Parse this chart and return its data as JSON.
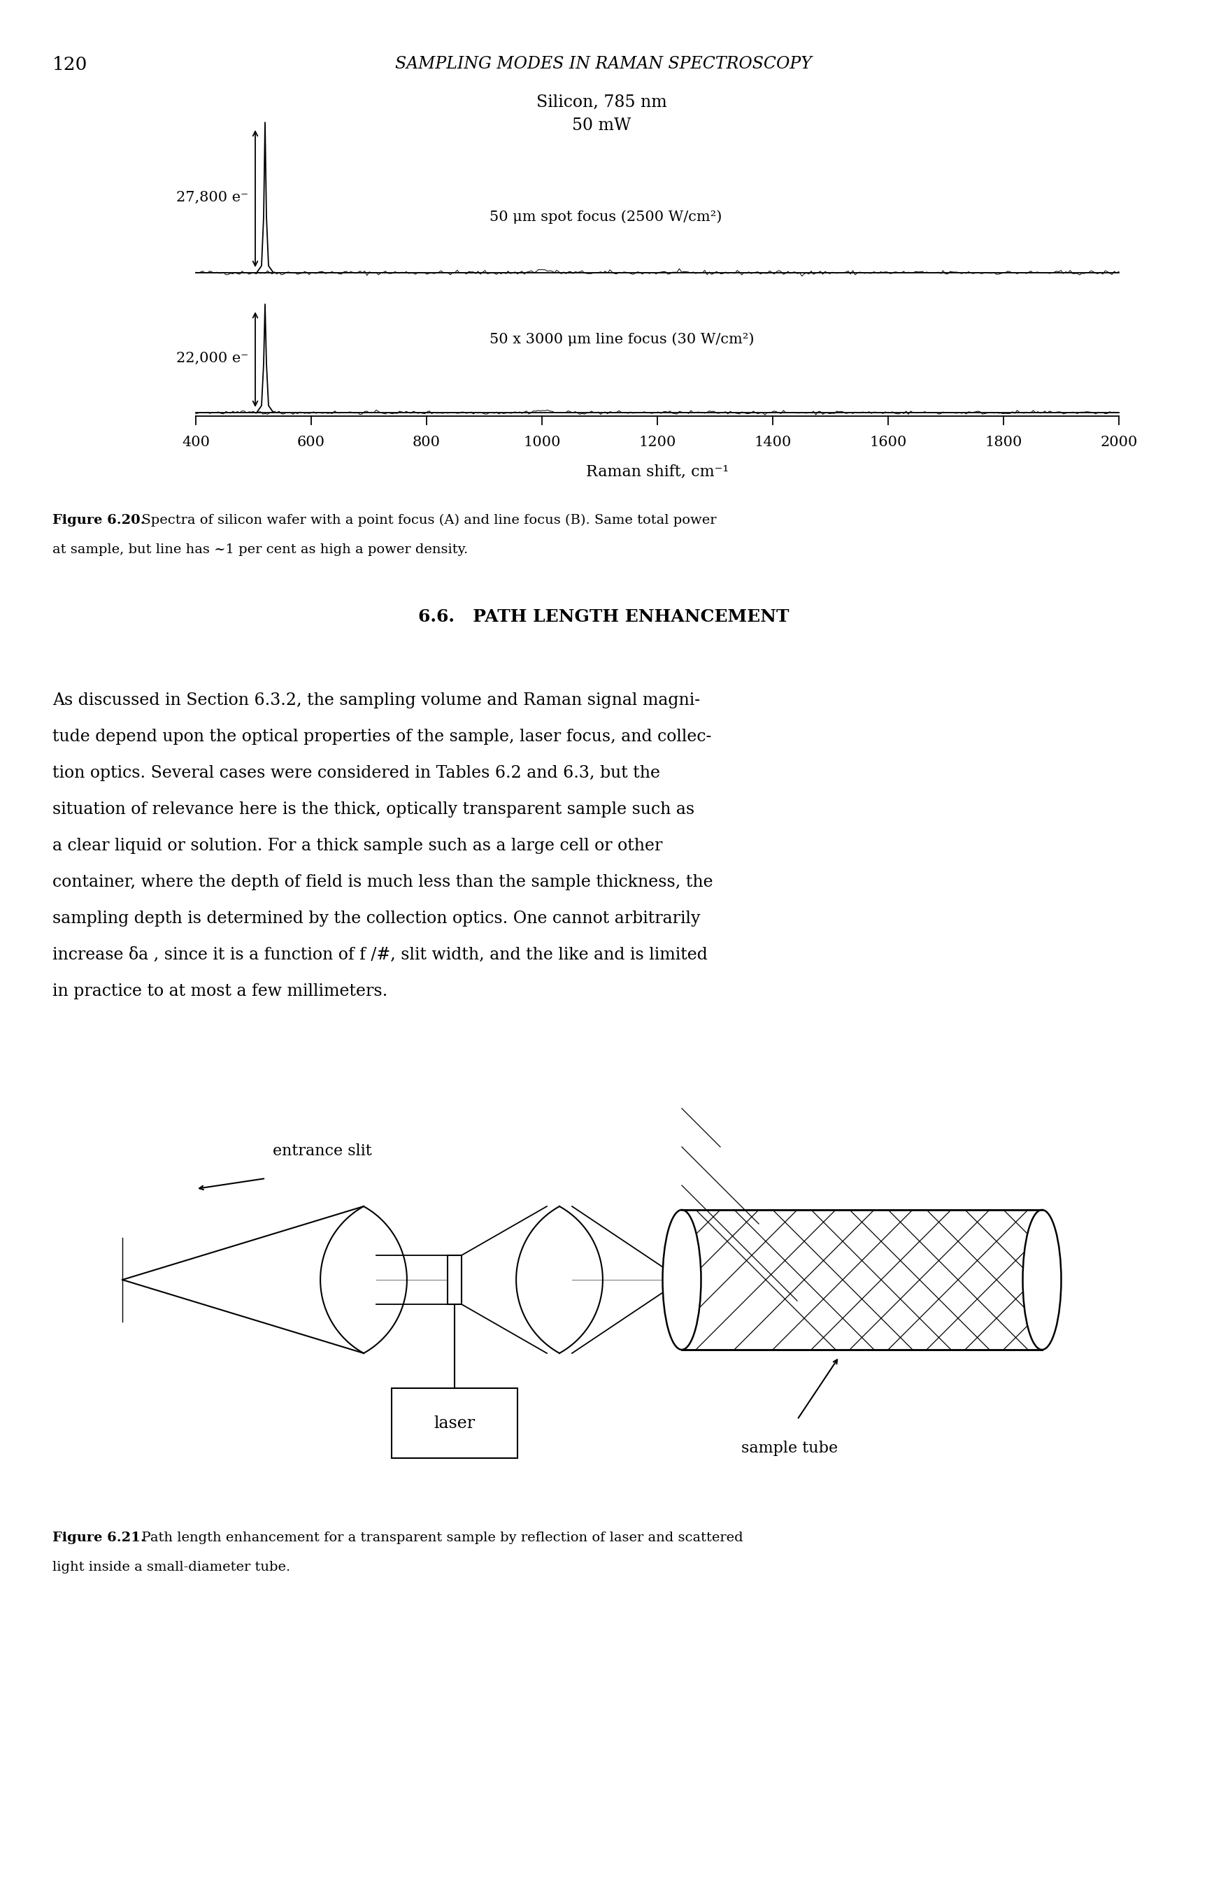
{
  "page_number": "120",
  "header_title": "SAMPLING MODES IN RAMAN SPECTROSCOPY",
  "fig20_ann1": "Silicon, 785 nm",
  "fig20_ann2": "50 mW",
  "fig20_ann3": "50 μm spot focus (2500 W/cm²)",
  "fig20_ann4_label": "27,800 e⁻",
  "fig20_ann5_label": "22,000 e⁻",
  "fig20_ann6": "50 x 3000 μm line focus (30 W/cm²)",
  "fig20_xlabel": "Raman shift, cm⁻¹",
  "fig20_xticks": [
    400,
    600,
    800,
    1000,
    1200,
    1400,
    1600,
    1800,
    2000
  ],
  "fig20_caption_bold": "Figure 6.20.",
  "fig20_caption_rest": "  Spectra of silicon wafer with a point focus (A) and line focus (B). Same total power",
  "fig20_caption_line2": "at sample, but line has ~1 per cent as high a power density.",
  "section_title": "6.6.   PATH LENGTH ENHANCEMENT",
  "body_lines": [
    "As discussed in Section 6.3.2, the sampling volume and Raman signal magni-",
    "tude depend upon the optical properties of the sample, laser focus, and collec-",
    "tion optics. Several cases were considered in Tables 6.2 and 6.3, but the",
    "situation of relevance here is the thick, optically transparent sample such as",
    "a clear liquid or solution. For a thick sample such as a large cell or other",
    "container, where the depth of field is much less than the sample thickness, the",
    "sampling depth is determined by the collection optics. One cannot arbitrarily",
    "increase δa , since it is a function of f /#, slit width, and the like and is limited",
    "in practice to at most a few millimeters."
  ],
  "fig21_label_entrance": "entrance slit",
  "fig21_label_laser": "laser",
  "fig21_label_sample": "sample tube",
  "fig21_caption_bold": "Figure 6.21.",
  "fig21_caption_rest": "  Path length enhancement for a transparent sample by reflection of laser and scattered",
  "fig21_caption_line2": "light inside a small-diameter tube.",
  "bg_color": "#ffffff",
  "text_color": "#000000"
}
